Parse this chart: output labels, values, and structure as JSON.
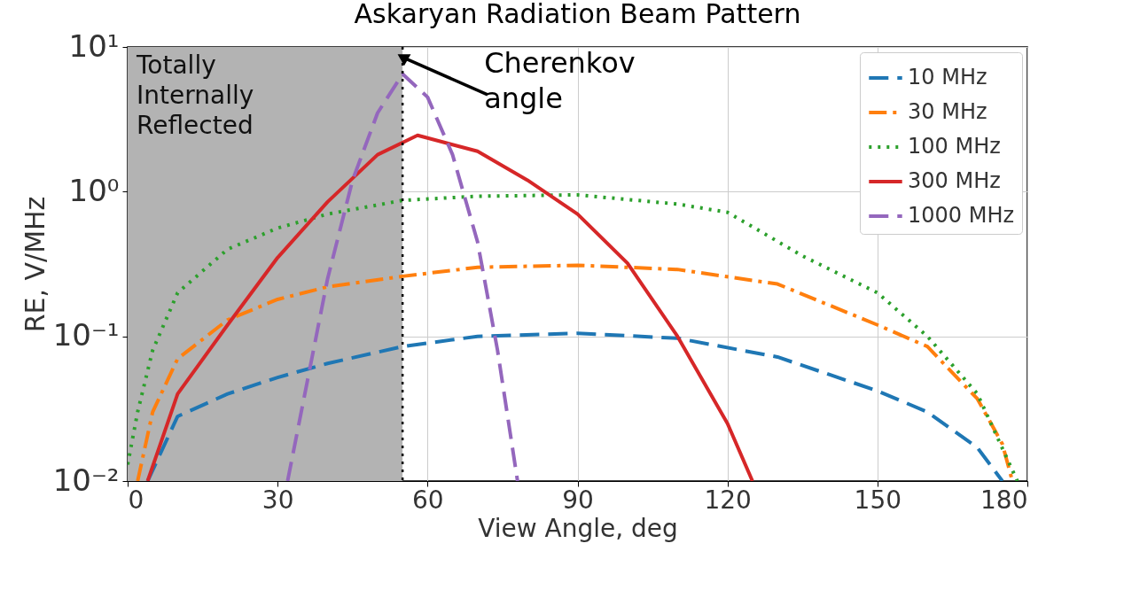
{
  "chart_data": {
    "type": "line",
    "title": "Askaryan Radiation Beam Pattern",
    "xlabel": "View Angle, deg",
    "ylabel": "RE, V/MHz",
    "xlim": [
      0,
      180
    ],
    "xticks": [
      0,
      30,
      60,
      90,
      120,
      150,
      180
    ],
    "ylim": [
      0.01,
      10
    ],
    "yticks": [
      {
        "value": 0.01,
        "label": "10⁻²"
      },
      {
        "value": 0.1,
        "label": "10⁻¹"
      },
      {
        "value": 1,
        "label": "10⁰"
      },
      {
        "value": 10,
        "label": "10¹"
      }
    ],
    "log": "y",
    "grid": true,
    "legend": "top right",
    "bands": [
      {
        "axis": "x",
        "from": 0,
        "to": 55,
        "label": "Totally\nInternally\nReflected",
        "color": "#b3b3b3"
      }
    ],
    "ref_lines": [
      {
        "axis": "x",
        "value": 55,
        "color": "#000000",
        "line_style": "dotted"
      }
    ],
    "annotations": [
      {
        "text": "Cherenkov\nangle",
        "x": 55,
        "y": 8.5
      }
    ],
    "series": [
      {
        "name": "10 MHz",
        "color": "#1f77b4",
        "line_style": "dashed",
        "x": [
          4,
          10,
          20,
          30,
          40,
          55,
          70,
          90,
          110,
          130,
          150,
          160,
          170,
          175
        ],
        "values": [
          0.01,
          0.028,
          0.04,
          0.052,
          0.065,
          0.085,
          0.1,
          0.105,
          0.097,
          0.072,
          0.042,
          0.03,
          0.017,
          0.01
        ]
      },
      {
        "name": "30 MHz",
        "color": "#ff7f0e",
        "line_style": "dashdot",
        "x": [
          2,
          5,
          10,
          20,
          30,
          40,
          55,
          70,
          90,
          110,
          130,
          150,
          160,
          170,
          175,
          177
        ],
        "values": [
          0.01,
          0.03,
          0.07,
          0.13,
          0.18,
          0.22,
          0.26,
          0.3,
          0.31,
          0.29,
          0.23,
          0.12,
          0.085,
          0.037,
          0.018,
          0.01
        ]
      },
      {
        "name": "100 MHz",
        "color": "#2ca02c",
        "line_style": "dotted",
        "x": [
          0,
          2,
          5,
          10,
          20,
          30,
          40,
          55,
          70,
          90,
          110,
          120,
          135,
          150,
          160,
          170,
          178
        ],
        "values": [
          0.013,
          0.03,
          0.08,
          0.2,
          0.4,
          0.56,
          0.7,
          0.87,
          0.93,
          0.95,
          0.82,
          0.72,
          0.36,
          0.2,
          0.1,
          0.04,
          0.01
        ]
      },
      {
        "name": "300 MHz",
        "color": "#d62728",
        "line_style": "solid",
        "x": [
          4,
          10,
          20,
          30,
          40,
          50,
          58,
          70,
          80,
          90,
          100,
          110,
          120,
          125
        ],
        "values": [
          0.01,
          0.04,
          0.12,
          0.35,
          0.85,
          1.8,
          2.45,
          1.9,
          1.2,
          0.7,
          0.32,
          0.1,
          0.025,
          0.01
        ]
      },
      {
        "name": "1000 MHz",
        "color": "#9467bd",
        "line_style": "dashed",
        "x": [
          32,
          36,
          40,
          45,
          50,
          55,
          60,
          65,
          70,
          74,
          78
        ],
        "values": [
          0.01,
          0.05,
          0.25,
          1.2,
          3.5,
          6.5,
          4.5,
          1.8,
          0.45,
          0.08,
          0.01
        ]
      }
    ]
  }
}
